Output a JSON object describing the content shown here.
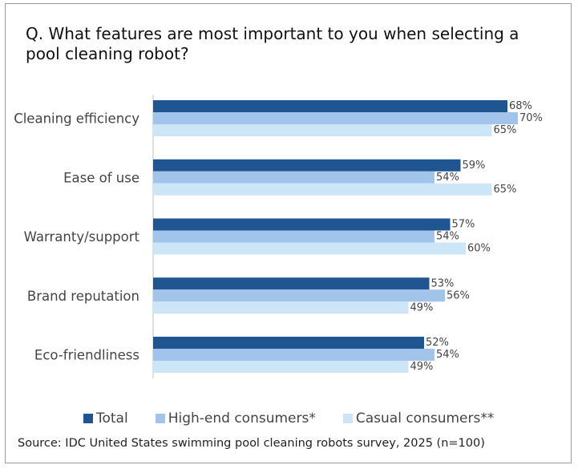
{
  "title": "Q. What features are most important to you when selecting a pool cleaning robot?",
  "source": "Source: IDC United States swimming pool cleaning robots survey, 2025 (n=100)",
  "chart_data": {
    "type": "bar",
    "orientation": "horizontal",
    "categories": [
      "Cleaning efficiency",
      "Ease of use",
      "Warranty/support",
      "Brand reputation",
      "Eco-friendliness"
    ],
    "series": [
      {
        "name": "Total",
        "values": [
          68,
          59,
          57,
          53,
          52
        ],
        "labels": [
          "68%",
          "59%",
          "57%",
          "53%",
          "52%"
        ],
        "color": "#1f5591"
      },
      {
        "name": "High-end consumers*",
        "values": [
          70,
          54,
          54,
          56,
          54
        ],
        "labels": [
          "70%",
          "54%",
          "54%",
          "56%",
          "54%"
        ],
        "color": "#a3c4ea"
      },
      {
        "name": "Casual consumers**",
        "values": [
          65,
          65,
          60,
          49,
          49
        ],
        "labels": [
          "65%",
          "65%",
          "60%",
          "49%",
          "49%"
        ],
        "color": "#cde6f7"
      }
    ],
    "xlim": [
      0,
      100
    ],
    "grid": false,
    "legend_position": "bottom"
  }
}
